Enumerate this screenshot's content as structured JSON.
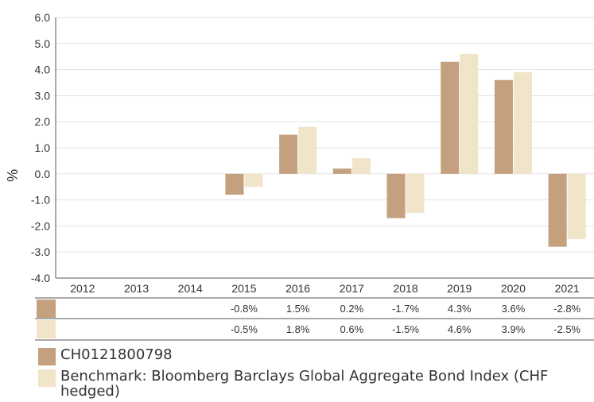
{
  "chart_data": {
    "type": "bar",
    "categories": [
      "2012",
      "2013",
      "2014",
      "2015",
      "2016",
      "2017",
      "2018",
      "2019",
      "2020",
      "2021"
    ],
    "series": [
      {
        "name": "CH0121800798",
        "color": "#c4a07e",
        "values": [
          null,
          null,
          null,
          -0.8,
          1.5,
          0.2,
          -1.7,
          4.3,
          3.6,
          -2.8
        ],
        "labels": [
          "",
          "",
          "",
          "-0.8%",
          "1.5%",
          "0.2%",
          "-1.7%",
          "4.3%",
          "3.6%",
          "-2.8%"
        ]
      },
      {
        "name": "Benchmark: Bloomberg Barclays Global Aggregate Bond Index (CHF hedged)",
        "color": "#f0e4c9",
        "values": [
          null,
          null,
          null,
          -0.5,
          1.8,
          0.6,
          -1.5,
          4.6,
          3.9,
          -2.5
        ],
        "labels": [
          "",
          "",
          "",
          "-0.5%",
          "1.8%",
          "0.6%",
          "-1.5%",
          "4.6%",
          "3.9%",
          "-2.5%"
        ]
      }
    ],
    "ylabel": "%",
    "ylim": [
      -4.0,
      6.0
    ],
    "yticks": [
      "6.0",
      "5.0",
      "4.0",
      "3.0",
      "2.0",
      "1.0",
      "0.0",
      "-1.0",
      "-2.0",
      "-3.0",
      "-4.0"
    ],
    "grid": true,
    "legend_position": "bottom"
  }
}
